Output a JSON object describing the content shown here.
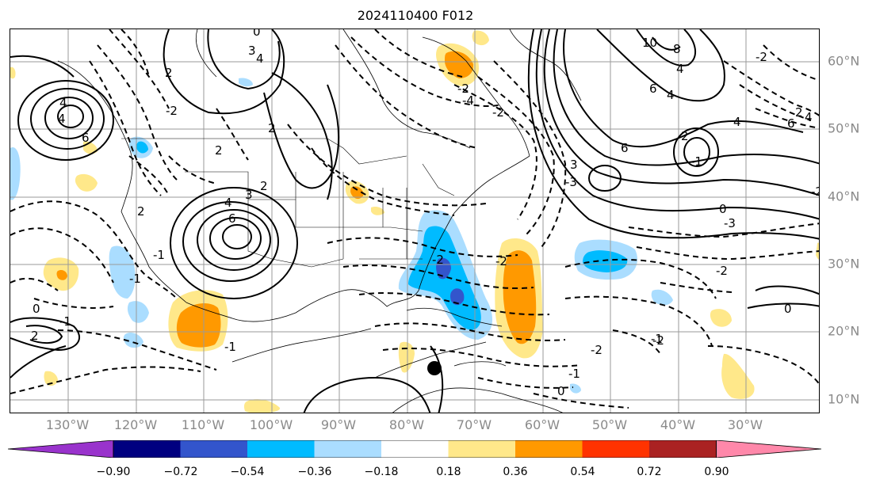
{
  "title": "2024110400 F012",
  "lon_labels": [
    "130°W",
    "120°W",
    "110°W",
    "100°W",
    "90°W",
    "80°W",
    "70°W",
    "60°W",
    "50°W",
    "40°W",
    "30°W"
  ],
  "lat_labels": [
    "60°N",
    "50°N",
    "40°N",
    "30°N",
    "20°N",
    "10°N"
  ],
  "colorbar": {
    "ticks": [
      "−0.90",
      "−0.72",
      "−0.54",
      "−0.36",
      "−0.18",
      "0.18",
      "0.36",
      "0.54",
      "0.72",
      "0.90"
    ],
    "colors": [
      "#9933cc",
      "#000080",
      "#3355cc",
      "#00bbff",
      "#aaddff",
      "#ffffff",
      "#ffe88a",
      "#ff9900",
      "#ff3300",
      "#aa2222",
      "#ff88aa"
    ]
  },
  "contour_labels": [
    "0",
    "3",
    "4",
    "4",
    "4",
    "2",
    "2",
    "2",
    "3",
    "6",
    "2",
    "4",
    "2",
    "6",
    "-2",
    "-2",
    "-4",
    "-1",
    "0",
    "2",
    "-1",
    "-1",
    "-2",
    "-1",
    "-2",
    "-1",
    "0",
    "-2",
    "10",
    "8",
    "6",
    "4",
    "6",
    "4",
    "2",
    "4",
    "3",
    "6",
    "4",
    "2",
    "-1",
    "0",
    "-2",
    "-2",
    "-2",
    "-3",
    "-2",
    "-3",
    "0",
    "-1",
    "-2"
  ],
  "storm_marker": "tropical-cyclone-center"
}
